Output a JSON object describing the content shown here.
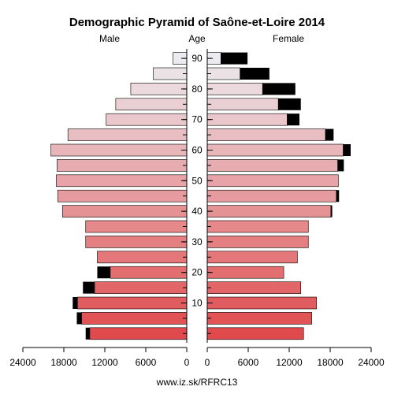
{
  "chart_data": {
    "type": "bar",
    "title": "Demographic Pyramid of Saône-et-Loire 2014",
    "left_label": "Male",
    "center_label": "Age",
    "right_label": "Female",
    "source": "www.iz.sk/RFRC13",
    "x_ticks_left": [
      "24000",
      "18000",
      "12000",
      "6000",
      "0"
    ],
    "x_ticks_right": [
      "0",
      "6000",
      "12000",
      "18000",
      "24000"
    ],
    "age_ticks": [
      "10",
      "20",
      "30",
      "40",
      "50",
      "60",
      "70",
      "80",
      "90"
    ],
    "xlim": [
      0,
      24000
    ],
    "age_groups": [
      "0-4",
      "5-9",
      "10-14",
      "15-19",
      "20-24",
      "25-29",
      "30-34",
      "35-39",
      "40-44",
      "45-49",
      "50-54",
      "55-59",
      "60-64",
      "65-69",
      "70-74",
      "75-79",
      "80-84",
      "85-89",
      "90+"
    ],
    "male_base": [
      14200,
      15400,
      16000,
      13500,
      11200,
      13100,
      14800,
      14800,
      18200,
      18900,
      19100,
      19000,
      19900,
      17400,
      11800,
      10400,
      8200,
      4900,
      2000
    ],
    "male_excess": [
      600,
      700,
      700,
      1700,
      1900,
      0,
      0,
      0,
      0,
      0,
      0,
      0,
      0,
      0,
      0,
      0,
      0,
      0,
      0
    ],
    "female_base": [
      14100,
      15300,
      16000,
      13700,
      11200,
      13200,
      14800,
      14800,
      18100,
      18900,
      19200,
      19100,
      19900,
      17300,
      11700,
      10400,
      8100,
      4800,
      2000
    ],
    "female_excess": [
      0,
      0,
      0,
      0,
      0,
      0,
      0,
      0,
      200,
      400,
      0,
      900,
      1100,
      1200,
      1800,
      3300,
      4800,
      4300,
      3900
    ],
    "colors": {
      "edge": "#000000",
      "excess": "#000000",
      "bar_fill_young": "#e04a4c",
      "bar_fill_old": "#ecebef"
    }
  }
}
